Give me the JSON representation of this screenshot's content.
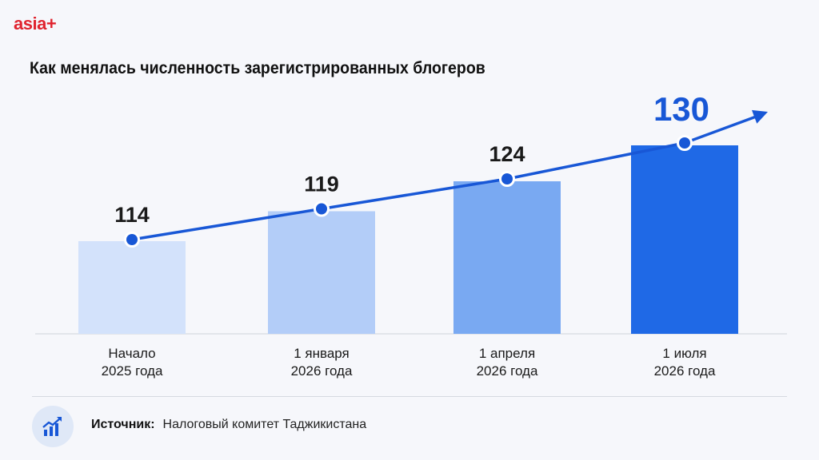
{
  "brand": {
    "logo_text": "asia+",
    "logo_color": "#e0232e"
  },
  "chart_data": {
    "type": "bar",
    "title": "Как менялась численность зарегистрированных блогеров",
    "categories": [
      [
        "Начало",
        "2025 года"
      ],
      [
        "1 января",
        "2026 года"
      ],
      [
        "1 апреля",
        "2026 года"
      ],
      [
        "1 июля",
        "2026 года"
      ]
    ],
    "values": [
      114,
      119,
      124,
      130
    ],
    "value_labels": [
      "114",
      "119",
      "124",
      "130"
    ],
    "bar_colors": [
      "#d3e2fb",
      "#b3cdf8",
      "#79a9f2",
      "#1f69e6"
    ],
    "trend_line": true,
    "trend_color": "#1857d6",
    "highlight_color": "#1857d6",
    "grid": false
  },
  "source": {
    "label": "Источник:",
    "text": "Налоговый комитет Таджикистана",
    "icon": "chart-growth-icon"
  }
}
